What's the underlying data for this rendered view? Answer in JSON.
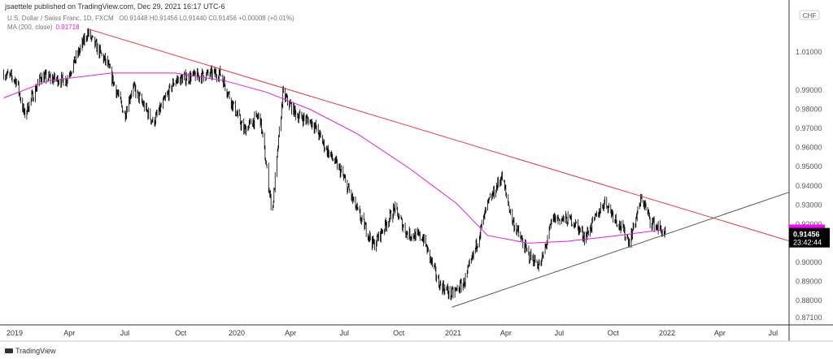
{
  "header": {
    "published": "jsaettele published on TradingView.com, Dec 29, 2021 16:17 UTC-6",
    "symbol": "U.S. Dollar / Swiss Franc, 1D, FXCM",
    "ohlc": "O0.91448  H0.91456  L0.91440  C0.91456  +0.00008 (+0.01%)",
    "ma_label": "MA (200, close)",
    "ma_value": "0.91718"
  },
  "footer": {
    "brand": "TradingView"
  },
  "chart_data": {
    "type": "line",
    "title": "U.S. Dollar / Swiss Franc, 1D, FXCM",
    "currency_label": "CHF",
    "ylim": [
      0.871,
      1.022
    ],
    "y_ticks": [
      "1.01000",
      "0.99000",
      "0.98000",
      "0.97000",
      "0.96000",
      "0.95000",
      "0.94000",
      "0.93000",
      "0.92000",
      "0.90000",
      "0.89000",
      "0.88000",
      "0.87100"
    ],
    "x_ticks": [
      {
        "label": "2019",
        "date": "2019-01-01"
      },
      {
        "label": "Apr",
        "date": "2019-04-01"
      },
      {
        "label": "Jul",
        "date": "2019-07-01"
      },
      {
        "label": "Oct",
        "date": "2019-10-01"
      },
      {
        "label": "2020",
        "date": "2020-01-01"
      },
      {
        "label": "Apr",
        "date": "2020-04-01"
      },
      {
        "label": "Jul",
        "date": "2020-07-01"
      },
      {
        "label": "Oct",
        "date": "2020-10-01"
      },
      {
        "label": "2021",
        "date": "2021-01-01"
      },
      {
        "label": "Apr",
        "date": "2021-04-01"
      },
      {
        "label": "Jul",
        "date": "2021-07-01"
      },
      {
        "label": "Oct",
        "date": "2021-10-01"
      },
      {
        "label": "2022",
        "date": "2022-01-01"
      },
      {
        "label": "Apr",
        "date": "2022-04-01"
      },
      {
        "label": "Jul",
        "date": "2022-07-01"
      }
    ],
    "price": {
      "dates": [
        "2018-12-14",
        "2019-01-04",
        "2019-01-17",
        "2019-02-13",
        "2019-03-26",
        "2019-05-01",
        "2019-06-03",
        "2019-07-01",
        "2019-07-14",
        "2019-08-17",
        "2019-09-21",
        "2019-10-18",
        "2019-12-05",
        "2019-12-26",
        "2020-01-13",
        "2020-02-09",
        "2020-03-01",
        "2020-03-19",
        "2020-04-12",
        "2020-05-09",
        "2020-05-30",
        "2020-06-26",
        "2020-07-24",
        "2020-08-20",
        "2020-09-24",
        "2020-10-15",
        "2020-11-11",
        "2020-12-08",
        "2020-12-29",
        "2021-01-19",
        "2021-02-01",
        "2021-03-01",
        "2021-03-25",
        "2021-04-12",
        "2021-05-09",
        "2021-05-30",
        "2021-06-20",
        "2021-07-24",
        "2021-08-14",
        "2021-09-17",
        "2021-10-29",
        "2021-11-19",
        "2021-12-03",
        "2021-12-29"
      ],
      "values": [
        0.999,
        0.995,
        0.977,
        0.997,
        0.995,
        1.02,
        1.003,
        0.977,
        0.992,
        0.973,
        0.995,
        0.997,
        0.999,
        0.982,
        0.969,
        0.977,
        0.926,
        0.988,
        0.977,
        0.973,
        0.96,
        0.947,
        0.926,
        0.909,
        0.928,
        0.915,
        0.913,
        0.889,
        0.883,
        0.889,
        0.9,
        0.93,
        0.945,
        0.922,
        0.904,
        0.898,
        0.923,
        0.922,
        0.913,
        0.932,
        0.911,
        0.934,
        0.922,
        0.91456
      ],
      "color": "#000000"
    },
    "ma200": {
      "name": "MA (200, close)",
      "dates": [
        "2018-12-14",
        "2019-02-26",
        "2019-06-09",
        "2019-09-21",
        "2019-12-12",
        "2020-02-20",
        "2020-05-04",
        "2020-07-24",
        "2020-10-15",
        "2021-01-06",
        "2021-03-01",
        "2021-05-09",
        "2021-07-16",
        "2021-10-09",
        "2021-12-29"
      ],
      "values": [
        0.986,
        0.995,
        0.999,
        0.999,
        0.995,
        0.989,
        0.98,
        0.967,
        0.95,
        0.931,
        0.914,
        0.91,
        0.911,
        0.914,
        0.91718
      ],
      "color": "#e41ae4"
    },
    "trendlines": [
      {
        "color": "#f23645",
        "points": [
          [
            "2019-05-02",
            1.022
          ],
          [
            "2021-11-24",
            0.934
          ]
        ]
      },
      {
        "color": "#555555",
        "points": [
          [
            "2020-12-30",
            0.8765
          ],
          [
            "2021-06-01",
            0.8925
          ]
        ]
      }
    ],
    "last_price": {
      "value": "0.91456",
      "countdown": "23:42:44",
      "color": "#000000"
    },
    "ma_badge": {
      "value": "0.91718",
      "color": "#ff00ff"
    }
  }
}
